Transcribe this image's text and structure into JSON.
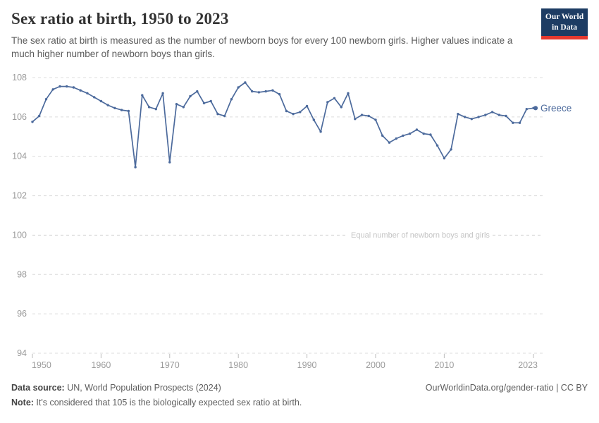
{
  "header": {
    "title": "Sex ratio at birth, 1950 to 2023",
    "subtitle": "The sex ratio at birth is measured as the number of newborn boys for every 100 newborn girls. Higher values indicate a much higher number of newborn boys than girls.",
    "logo": {
      "line1": "Our World",
      "line2": "in Data"
    }
  },
  "chart_data": {
    "type": "line",
    "title": "Sex ratio at birth, 1950 to 2023",
    "xlabel": "",
    "ylabel": "",
    "ylim": [
      94,
      108
    ],
    "yticks": [
      94,
      96,
      98,
      100,
      102,
      104,
      106,
      108
    ],
    "xticks": [
      1950,
      1960,
      1970,
      1980,
      1990,
      2000,
      2010,
      2023
    ],
    "grid": "dashed-horizontal",
    "legend_position": "end-of-line-label",
    "annotation": {
      "text": "Equal number of newborn boys and girls",
      "y": 100
    },
    "series": [
      {
        "name": "Greece",
        "color": "#4C6A9C",
        "x": [
          1950,
          1951,
          1952,
          1953,
          1954,
          1955,
          1956,
          1957,
          1958,
          1959,
          1960,
          1961,
          1962,
          1963,
          1964,
          1965,
          1966,
          1967,
          1968,
          1969,
          1970,
          1971,
          1972,
          1973,
          1974,
          1975,
          1976,
          1977,
          1978,
          1979,
          1980,
          1981,
          1982,
          1983,
          1984,
          1985,
          1986,
          1987,
          1988,
          1989,
          1990,
          1991,
          1992,
          1993,
          1994,
          1995,
          1996,
          1997,
          1998,
          1999,
          2000,
          2001,
          2002,
          2003,
          2004,
          2005,
          2006,
          2007,
          2008,
          2009,
          2010,
          2011,
          2012,
          2013,
          2014,
          2015,
          2016,
          2017,
          2018,
          2019,
          2020,
          2021,
          2022,
          2023
        ],
        "values": [
          105.75,
          106.05,
          106.9,
          107.4,
          107.55,
          107.55,
          107.5,
          107.35,
          107.2,
          107.0,
          106.8,
          106.6,
          106.45,
          106.35,
          106.3,
          103.45,
          107.1,
          106.5,
          106.4,
          107.2,
          103.7,
          106.65,
          106.5,
          107.05,
          107.3,
          106.7,
          106.8,
          106.15,
          106.05,
          106.9,
          107.5,
          107.75,
          107.3,
          107.25,
          107.3,
          107.35,
          107.15,
          106.3,
          106.15,
          106.25,
          106.55,
          105.85,
          105.25,
          106.75,
          106.95,
          106.5,
          107.2,
          105.9,
          106.1,
          106.05,
          105.85,
          105.05,
          104.7,
          104.9,
          105.05,
          105.15,
          105.35,
          105.15,
          105.1,
          104.55,
          103.9,
          104.35,
          106.15,
          106.0,
          105.9,
          106.0,
          106.1,
          106.25,
          106.1,
          106.05,
          105.7,
          105.7,
          106.4,
          106.45
        ]
      }
    ]
  },
  "footer": {
    "source_label": "Data source:",
    "source_text": " UN, World Population Prospects (2024)",
    "right_text": "OurWorldinData.org/gender-ratio | CC BY",
    "note_label": "Note:",
    "note_text": " It's considered that 105 is the biologically expected sex ratio at birth."
  },
  "colors": {
    "line": "#4C6A9C",
    "grid": "#dcdcdc",
    "reference_grid": "#c6c6c6",
    "tick_text": "#9b9b9b",
    "annotation_text": "#c4c4c4",
    "logo_bg": "#1d3c63",
    "logo_stripe": "#e5392f"
  }
}
